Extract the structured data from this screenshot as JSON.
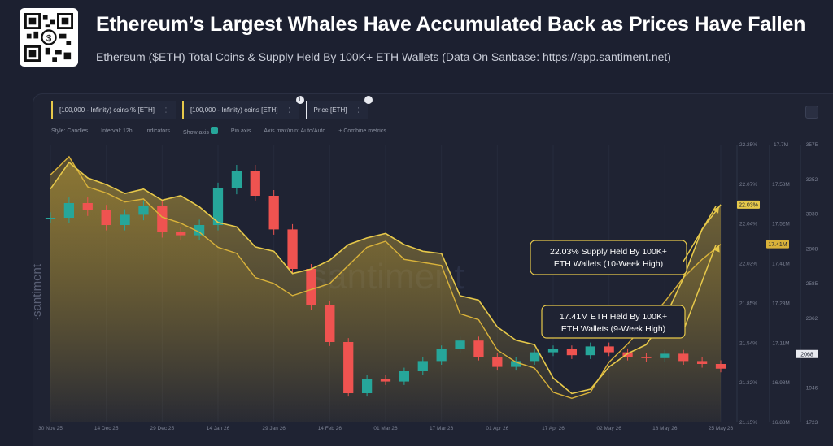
{
  "header": {
    "title": "Ethereum’s Largest Whales Have Accumulated Back as Prices Have Fallen",
    "subtitle": "Ethereum ($ETH) Total Coins & Supply Held By 100K+ ETH Wallets (Data On Sanbase: https://app.santiment.net)"
  },
  "colors": {
    "supply_pct": "#e6c84a",
    "coins": "#d9b23a",
    "price_up": "#26a69a",
    "price_down": "#ef5350",
    "background": "#1c2030"
  },
  "icons": {
    "qr": "qr-code-icon",
    "info": "info-icon",
    "settings": "gear-icon"
  },
  "legend": {
    "metric1": "[100,000 - Infinity) coins % [ETH]",
    "metric2": "[100,000 - Infinity) coins [ETH]",
    "metric3": "Price [ETH]",
    "dots": "⋮"
  },
  "settings": {
    "style": "Style: Candles",
    "interval": "Interval: 12h",
    "indicators": "Indicators",
    "show_axis": "Show axis",
    "pin_axis": "Pin axis",
    "axis_max": "Axis max/min: Auto/Auto",
    "combine": "+ Combine metrics"
  },
  "chart_data": {
    "type": "line",
    "x_ticks": [
      "30 Nov 25",
      "14 Dec 25",
      "29 Dec 25",
      "14 Jan 26",
      "29 Jan 26",
      "14 Feb 26",
      "01 Mar 26",
      "17 Mar 26",
      "01 Apr 26",
      "17 Apr 26",
      "02 May 26",
      "18 May 26",
      "25 May 26"
    ],
    "y_axis_supply_pct": [
      "22.25%",
      "22.07%",
      "22.04%",
      "22.03%",
      "21.85%",
      "21.54%",
      "21.32%",
      "21.15%"
    ],
    "y_axis_coins": [
      "17.7M",
      "17.58M",
      "17.52M",
      "17.41M",
      "17.23M",
      "17.11M",
      "16.98M",
      "16.88M"
    ],
    "y_axis_price": [
      "3575",
      "3252",
      "3030",
      "2808",
      "2585",
      "2362",
      "2168",
      "1946",
      "1723"
    ],
    "current_labels": {
      "supply_pct": "22.03%",
      "coins": "17.41M",
      "price": "2068"
    },
    "annotations": [
      {
        "text_line1": "22.03% Supply Held By 100K+",
        "text_line2": "ETH Wallets (10-Week High)"
      },
      {
        "text_line1": "17.41M ETH Held By 100K+",
        "text_line2": "ETH Wallets (9-Week High)"
      }
    ],
    "series": [
      {
        "name": "[100,000 - Infinity) coins % [ETH]",
        "values": [
          22.1,
          22.22,
          22.15,
          22.12,
          22.08,
          22.1,
          22.05,
          22.07,
          22.02,
          21.95,
          21.93,
          21.84,
          21.82,
          21.72,
          21.74,
          21.78,
          21.85,
          21.88,
          21.9,
          21.85,
          21.82,
          21.81,
          21.62,
          21.6,
          21.48,
          21.42,
          21.4,
          21.25,
          21.18,
          21.2,
          21.3,
          21.36,
          21.4,
          21.52,
          21.7,
          21.92,
          22.03
        ]
      },
      {
        "name": "[100,000 - Infinity) coins [ETH]",
        "values": [
          17.64,
          17.7,
          17.6,
          17.58,
          17.55,
          17.56,
          17.5,
          17.48,
          17.45,
          17.4,
          17.38,
          17.3,
          17.28,
          17.24,
          17.26,
          17.28,
          17.34,
          17.4,
          17.42,
          17.36,
          17.35,
          17.34,
          17.18,
          17.16,
          17.06,
          17.02,
          17.0,
          16.92,
          16.9,
          16.92,
          17.02,
          17.08,
          17.15,
          17.22,
          17.3,
          17.36,
          17.41
        ]
      },
      {
        "name": "Price [ETH]",
        "values": [
          3100,
          3200,
          3150,
          3050,
          3120,
          3180,
          3000,
          2980,
          3050,
          3300,
          3420,
          3250,
          3020,
          2750,
          2500,
          2250,
          1900,
          2000,
          1980,
          2050,
          2120,
          2200,
          2260,
          2150,
          2080,
          2120,
          2180,
          2200,
          2160,
          2220,
          2180,
          2150,
          2140,
          2170,
          2120,
          2100,
          2068
        ]
      }
    ]
  }
}
